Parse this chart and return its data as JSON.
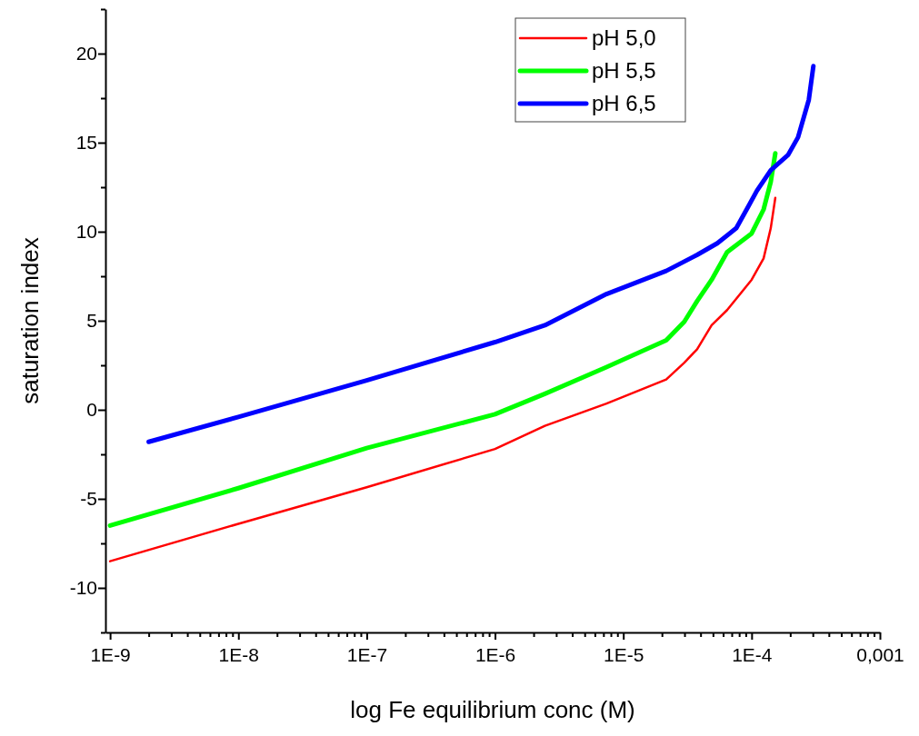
{
  "chart_data": {
    "type": "line",
    "xlabel": "log Fe equilibrium conc (M)",
    "ylabel": "saturation index",
    "log": "x",
    "grid": false,
    "legend": "top right",
    "marker": "none",
    "line_style": "solid",
    "xlim": [
      9.2e-10,
      0.001
    ],
    "ylim": [
      -12.5,
      22.5
    ],
    "xticks": [
      {
        "value": 1e-09,
        "label": "1E-9"
      },
      {
        "value": 2e-09,
        "label": null
      },
      {
        "value": 3e-09,
        "label": null
      },
      {
        "value": 4e-09,
        "label": null
      },
      {
        "value": 5e-09,
        "label": null
      },
      {
        "value": 6e-09,
        "label": null
      },
      {
        "value": 7e-09,
        "label": null
      },
      {
        "value": 8e-09,
        "label": null
      },
      {
        "value": 9e-09,
        "label": null
      },
      {
        "value": 1e-08,
        "label": "1E-8"
      },
      {
        "value": 2e-08,
        "label": null
      },
      {
        "value": 3e-08,
        "label": null
      },
      {
        "value": 4e-08,
        "label": null
      },
      {
        "value": 5e-08,
        "label": null
      },
      {
        "value": 6e-08,
        "label": null
      },
      {
        "value": 7e-08,
        "label": null
      },
      {
        "value": 8e-08,
        "label": null
      },
      {
        "value": 9e-08,
        "label": null
      },
      {
        "value": 1e-07,
        "label": "1E-7"
      },
      {
        "value": 2e-07,
        "label": null
      },
      {
        "value": 3e-07,
        "label": null
      },
      {
        "value": 4e-07,
        "label": null
      },
      {
        "value": 5e-07,
        "label": null
      },
      {
        "value": 6e-07,
        "label": null
      },
      {
        "value": 7e-07,
        "label": null
      },
      {
        "value": 8e-07,
        "label": null
      },
      {
        "value": 9e-07,
        "label": null
      },
      {
        "value": 1e-06,
        "label": "1E-6"
      },
      {
        "value": 2e-06,
        "label": null
      },
      {
        "value": 3e-06,
        "label": null
      },
      {
        "value": 4e-06,
        "label": null
      },
      {
        "value": 5e-06,
        "label": null
      },
      {
        "value": 6e-06,
        "label": null
      },
      {
        "value": 7e-06,
        "label": null
      },
      {
        "value": 8e-06,
        "label": null
      },
      {
        "value": 9e-06,
        "label": null
      },
      {
        "value": 1e-05,
        "label": "1E-5"
      },
      {
        "value": 2e-05,
        "label": null
      },
      {
        "value": 3e-05,
        "label": null
      },
      {
        "value": 4e-05,
        "label": null
      },
      {
        "value": 5e-05,
        "label": null
      },
      {
        "value": 6e-05,
        "label": null
      },
      {
        "value": 7e-05,
        "label": null
      },
      {
        "value": 8e-05,
        "label": null
      },
      {
        "value": 9e-05,
        "label": null
      },
      {
        "value": 0.0001,
        "label": "1E-4"
      },
      {
        "value": 0.0002,
        "label": null
      },
      {
        "value": 0.0003,
        "label": null
      },
      {
        "value": 0.0004,
        "label": null
      },
      {
        "value": 0.0005,
        "label": null
      },
      {
        "value": 0.0006,
        "label": null
      },
      {
        "value": 0.0007,
        "label": null
      },
      {
        "value": 0.0008,
        "label": null
      },
      {
        "value": 0.0009,
        "label": null
      },
      {
        "value": 0.001,
        "label": "0,001"
      }
    ],
    "yticks": [
      {
        "value": -12.5,
        "label": null
      },
      -10,
      {
        "value": -7.5,
        "label": null
      },
      -5,
      {
        "value": -2.5,
        "label": null
      },
      0,
      {
        "value": 2.5,
        "label": null
      },
      5,
      {
        "value": 7.5,
        "label": null
      },
      10,
      {
        "value": 12.5,
        "label": null
      },
      15,
      {
        "value": 17.5,
        "label": null
      },
      20,
      {
        "value": 22.5,
        "label": null
      }
    ],
    "series": [
      {
        "name": "pH 5,0",
        "color": "#ff0000",
        "x": [
          1e-09,
          1e-08,
          1e-07,
          1e-06,
          2.45e-06,
          7.4e-06,
          2.16e-05,
          2.99e-05,
          3.76e-05,
          4.88e-05,
          6.44e-05,
          0.0001,
          0.000124,
          0.000141,
          0.000153
        ],
        "values": [
          -8.5,
          -6.4,
          -4.35,
          -2.2,
          -0.9,
          0.35,
          1.7,
          2.65,
          3.4,
          4.75,
          5.6,
          7.3,
          8.5,
          10.2,
          11.9
        ]
      },
      {
        "name": "pH 5,5",
        "color": "#00ff00",
        "x": [
          1e-09,
          1e-08,
          1e-07,
          1e-06,
          2.45e-06,
          7.4e-06,
          2.16e-05,
          2.99e-05,
          3.76e-05,
          4.88e-05,
          6.44e-05,
          0.0001,
          0.000124,
          0.000141,
          0.000153
        ],
        "values": [
          -6.5,
          -4.4,
          -2.15,
          -0.25,
          0.9,
          2.4,
          3.9,
          4.95,
          6.1,
          7.3,
          8.85,
          9.9,
          11.25,
          12.8,
          14.4
        ]
      },
      {
        "name": "pH 6,5",
        "color": "#0000ff",
        "x": [
          2e-09,
          1e-08,
          1e-07,
          1e-06,
          2.45e-06,
          7.4e-06,
          2.16e-05,
          3.76e-05,
          5.4e-05,
          7.6e-05,
          9.4e-05,
          0.00011,
          0.000141,
          0.000192,
          0.00023,
          0.000279,
          0.000303
        ],
        "values": [
          -1.8,
          -0.4,
          1.65,
          3.8,
          4.75,
          6.5,
          7.8,
          8.7,
          9.35,
          10.2,
          11.4,
          12.3,
          13.45,
          14.3,
          15.3,
          17.4,
          19.3
        ]
      }
    ]
  }
}
